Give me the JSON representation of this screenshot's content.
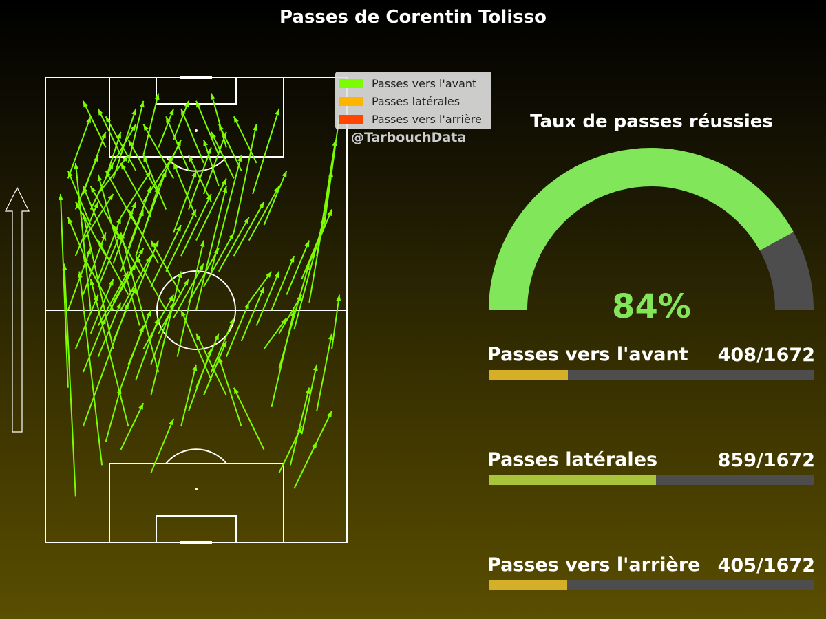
{
  "title": "Passes de Corentin Tolisso",
  "watermark": "@TarbouchData",
  "legend": [
    {
      "label": "Passes vers l'avant",
      "color": "#7cfc00"
    },
    {
      "label": "Passes latérales",
      "color": "#ffb400"
    },
    {
      "label": "Passes vers l'arrière",
      "color": "#ff4500"
    }
  ],
  "gauge": {
    "title": "Taux de passes réussies",
    "value_label": "84%",
    "value": 0.84,
    "fill_color": "#82e65a",
    "track_color": "#4d4d4d"
  },
  "stats": [
    {
      "label": "Passes vers l'avant",
      "value_label": "408/1672",
      "fraction": 0.244,
      "color": "#d4af27"
    },
    {
      "label": "Passes latérales",
      "value_label": "859/1672",
      "fraction": 0.514,
      "color": "#a9c43a"
    },
    {
      "label": "Passes vers l'arrière",
      "value_label": "405/1672",
      "fraction": 0.242,
      "color": "#d4af27"
    }
  ],
  "chart_data": {
    "type": "scatter",
    "title": "Passes de Corentin Tolisso",
    "direction": "bottom-to-top",
    "pitch": {
      "length": 120,
      "width": 80
    },
    "arrow_color": "#7cfc00",
    "passes": [
      [
        8,
        12,
        5,
        72
      ],
      [
        15,
        20,
        9,
        70
      ],
      [
        22,
        30,
        12,
        68
      ],
      [
        6,
        40,
        4,
        90
      ],
      [
        18,
        50,
        10,
        85
      ],
      [
        12,
        60,
        8,
        98
      ],
      [
        25,
        56,
        14,
        95
      ],
      [
        30,
        44,
        20,
        80
      ],
      [
        10,
        30,
        22,
        62
      ],
      [
        28,
        38,
        36,
        70
      ],
      [
        35,
        48,
        42,
        78
      ],
      [
        40,
        60,
        48,
        92
      ],
      [
        44,
        70,
        52,
        100
      ],
      [
        50,
        80,
        56,
        108
      ],
      [
        55,
        90,
        62,
        112
      ],
      [
        60,
        35,
        66,
        60
      ],
      [
        62,
        45,
        70,
        72
      ],
      [
        66,
        55,
        74,
        84
      ],
      [
        70,
        62,
        76,
        96
      ],
      [
        72,
        74,
        77,
        104
      ],
      [
        74,
        82,
        78,
        110
      ],
      [
        76,
        50,
        78,
        64
      ],
      [
        65,
        20,
        70,
        40
      ],
      [
        68,
        28,
        72,
        46
      ],
      [
        72,
        34,
        76,
        54
      ],
      [
        58,
        24,
        50,
        40
      ],
      [
        52,
        30,
        46,
        48
      ],
      [
        48,
        38,
        40,
        54
      ],
      [
        44,
        42,
        36,
        60
      ],
      [
        14,
        66,
        20,
        80
      ],
      [
        20,
        70,
        26,
        86
      ],
      [
        24,
        74,
        30,
        92
      ],
      [
        16,
        78,
        10,
        92
      ],
      [
        12,
        82,
        6,
        96
      ],
      [
        8,
        86,
        14,
        100
      ],
      [
        10,
        90,
        16,
        106
      ],
      [
        6,
        94,
        12,
        110
      ],
      [
        18,
        94,
        24,
        112
      ],
      [
        22,
        98,
        26,
        114
      ],
      [
        26,
        100,
        30,
        116
      ],
      [
        30,
        102,
        34,
        112
      ],
      [
        34,
        104,
        38,
        114
      ],
      [
        20,
        84,
        28,
        96
      ],
      [
        26,
        88,
        34,
        100
      ],
      [
        30,
        92,
        36,
        104
      ],
      [
        34,
        80,
        40,
        96
      ],
      [
        38,
        86,
        44,
        102
      ],
      [
        42,
        90,
        48,
        106
      ],
      [
        14,
        56,
        22,
        70
      ],
      [
        20,
        60,
        28,
        74
      ],
      [
        24,
        64,
        30,
        78
      ],
      [
        28,
        66,
        36,
        82
      ],
      [
        32,
        70,
        40,
        86
      ],
      [
        36,
        74,
        44,
        90
      ],
      [
        40,
        78,
        48,
        94
      ],
      [
        8,
        50,
        14,
        64
      ],
      [
        12,
        54,
        18,
        68
      ],
      [
        16,
        58,
        24,
        72
      ],
      [
        18,
        62,
        26,
        76
      ],
      [
        22,
        46,
        28,
        60
      ],
      [
        26,
        50,
        34,
        64
      ],
      [
        30,
        54,
        38,
        68
      ],
      [
        34,
        58,
        42,
        72
      ],
      [
        38,
        62,
        46,
        76
      ],
      [
        42,
        66,
        50,
        80
      ],
      [
        46,
        70,
        54,
        84
      ],
      [
        50,
        74,
        58,
        88
      ],
      [
        54,
        78,
        62,
        92
      ],
      [
        58,
        82,
        64,
        96
      ],
      [
        20,
        40,
        26,
        56
      ],
      [
        24,
        42,
        30,
        58
      ],
      [
        28,
        46,
        34,
        62
      ],
      [
        10,
        44,
        16,
        58
      ],
      [
        14,
        48,
        20,
        62
      ],
      [
        18,
        52,
        24,
        66
      ],
      [
        6,
        60,
        12,
        76
      ],
      [
        10,
        64,
        16,
        80
      ],
      [
        14,
        68,
        20,
        84
      ],
      [
        18,
        72,
        24,
        88
      ],
      [
        22,
        76,
        28,
        92
      ],
      [
        26,
        80,
        32,
        96
      ],
      [
        40,
        40,
        46,
        54
      ],
      [
        44,
        44,
        50,
        58
      ],
      [
        48,
        48,
        54,
        62
      ],
      [
        52,
        52,
        58,
        66
      ],
      [
        56,
        56,
        62,
        70
      ],
      [
        60,
        60,
        66,
        74
      ],
      [
        64,
        64,
        70,
        78
      ],
      [
        68,
        68,
        74,
        82
      ],
      [
        70,
        72,
        76,
        86
      ],
      [
        24,
        96,
        16,
        110
      ],
      [
        20,
        100,
        14,
        112
      ],
      [
        16,
        102,
        10,
        114
      ],
      [
        30,
        90,
        22,
        104
      ],
      [
        34,
        94,
        26,
        108
      ],
      [
        38,
        96,
        32,
        110
      ],
      [
        42,
        98,
        36,
        112
      ],
      [
        46,
        100,
        40,
        114
      ],
      [
        48,
        102,
        44,
        116
      ],
      [
        32,
        60,
        24,
        74
      ],
      [
        36,
        64,
        28,
        78
      ],
      [
        30,
        72,
        22,
        86
      ],
      [
        26,
        68,
        18,
        82
      ],
      [
        22,
        64,
        14,
        78
      ],
      [
        18,
        60,
        10,
        74
      ],
      [
        12,
        70,
        6,
        84
      ],
      [
        16,
        74,
        8,
        88
      ],
      [
        20,
        78,
        12,
        92
      ],
      [
        24,
        82,
        16,
        96
      ],
      [
        28,
        84,
        20,
        98
      ],
      [
        32,
        86,
        26,
        100
      ],
      [
        36,
        30,
        40,
        46
      ],
      [
        38,
        34,
        44,
        50
      ],
      [
        42,
        38,
        48,
        52
      ],
      [
        20,
        24,
        26,
        36
      ],
      [
        16,
        26,
        20,
        40
      ],
      [
        28,
        18,
        34,
        32
      ],
      [
        62,
        18,
        68,
        30
      ],
      [
        66,
        14,
        72,
        26
      ],
      [
        70,
        22,
        76,
        34
      ],
      [
        58,
        50,
        64,
        58
      ],
      [
        62,
        54,
        68,
        64
      ],
      [
        54,
        62,
        60,
        70
      ],
      [
        8,
        74,
        14,
        88
      ],
      [
        10,
        78,
        18,
        90
      ],
      [
        12,
        86,
        18,
        98
      ],
      [
        14,
        90,
        22,
        100
      ],
      [
        16,
        94,
        20,
        106
      ],
      [
        18,
        98,
        24,
        108
      ],
      [
        40,
        84,
        34,
        98
      ],
      [
        44,
        88,
        38,
        100
      ],
      [
        46,
        92,
        42,
        104
      ],
      [
        50,
        94,
        44,
        106
      ],
      [
        52,
        96,
        46,
        108
      ],
      [
        56,
        98,
        50,
        110
      ]
    ]
  }
}
